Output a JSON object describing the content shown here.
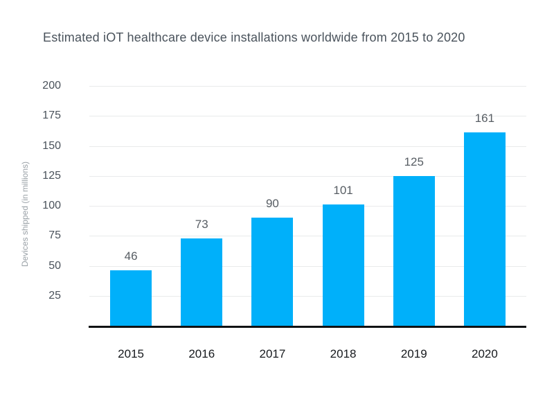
{
  "chart_data": {
    "type": "bar",
    "title": "Estimated iOT healthcare device installations worldwide from 2015 to 2020",
    "categories": [
      "2015",
      "2016",
      "2017",
      "2018",
      "2019",
      "2020"
    ],
    "values": [
      46,
      73,
      90,
      101,
      125,
      161
    ],
    "xlabel": "",
    "ylabel": "Devices shipped (in millions)",
    "ylim": [
      0,
      200
    ],
    "yticks": [
      25,
      50,
      75,
      100,
      125,
      150,
      175,
      200
    ],
    "grid": true,
    "legend_position": "none",
    "show_data_labels": true
  },
  "colors": {
    "bar": "#00b0fa",
    "axis_line": "#101214",
    "gridline": "#e9eaeb",
    "title_text": "#49525b",
    "y_tick_text": "#4a525b",
    "value_label_text": "#575d63",
    "x_tick_text": "#16191d",
    "y_axis_label_text": "#9aa1a7",
    "background": "#ffffff"
  }
}
